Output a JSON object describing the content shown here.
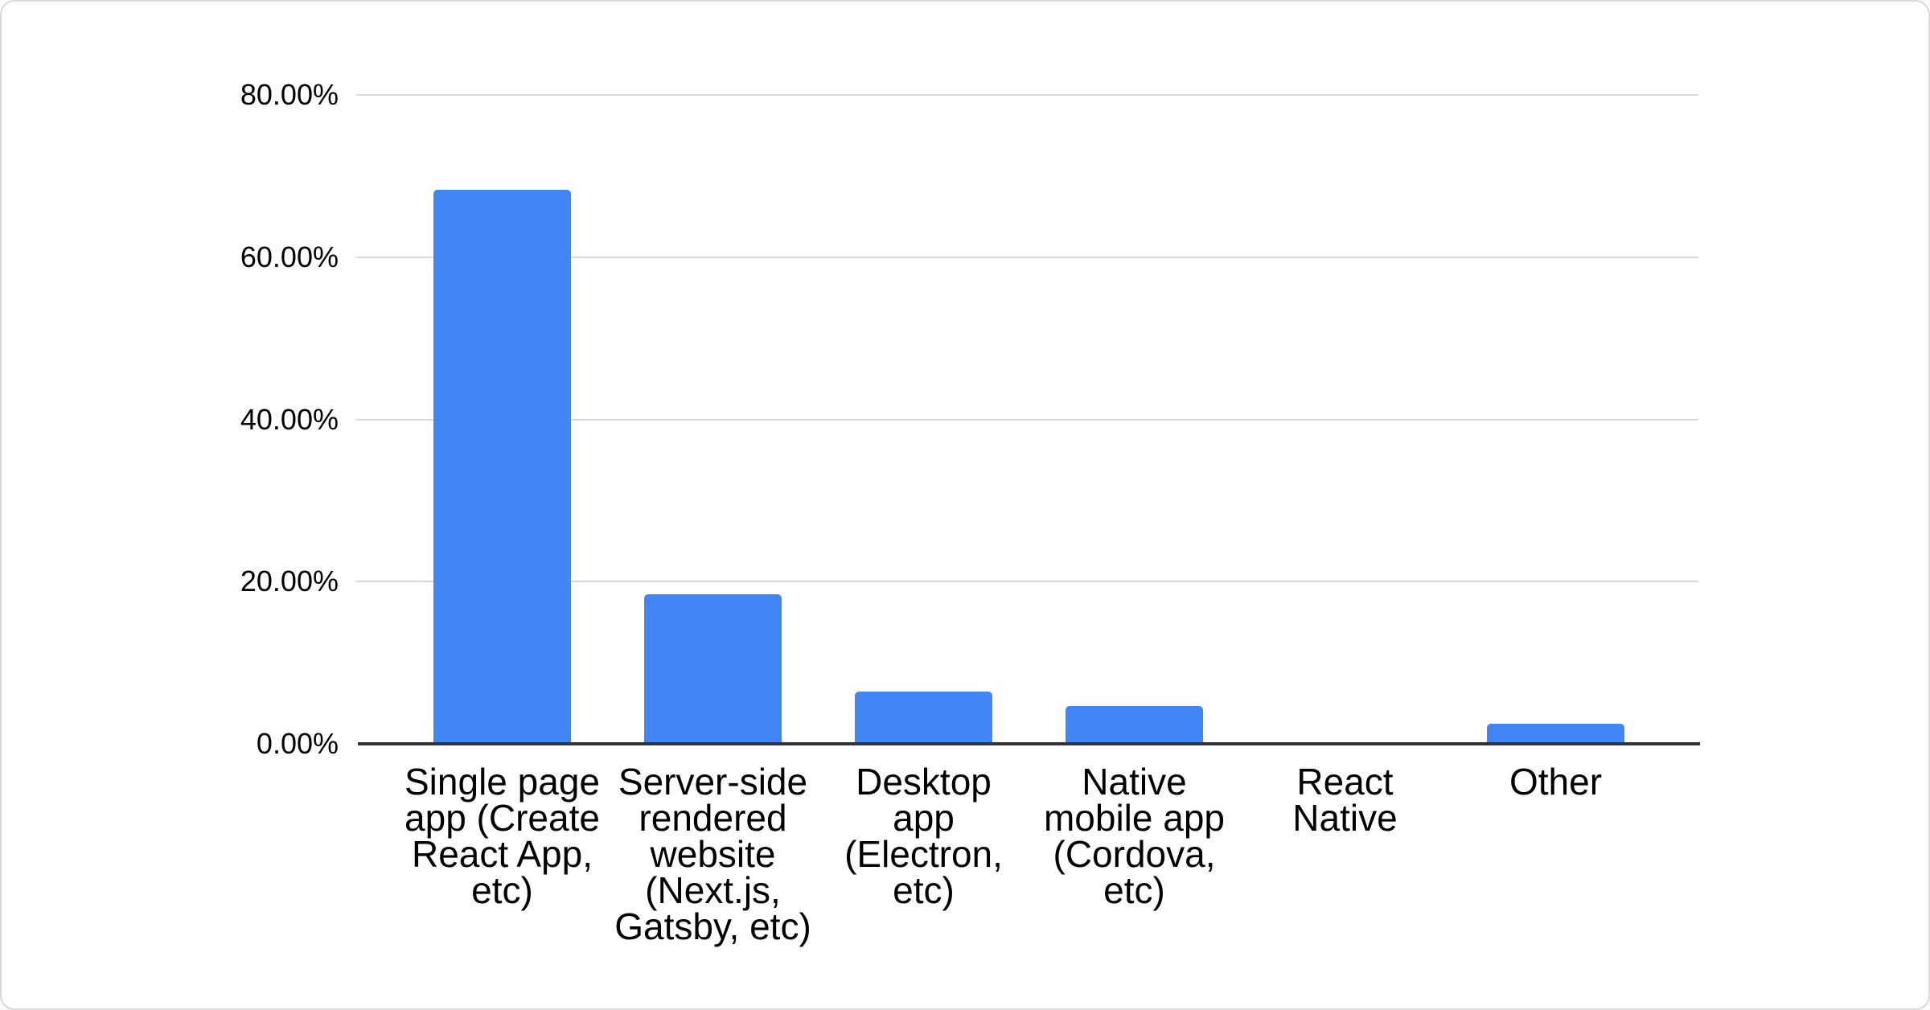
{
  "chart_data": {
    "type": "bar",
    "title": "",
    "xlabel": "",
    "ylabel": "",
    "categories": [
      "Single page app (Create React App, etc)",
      "Server-side rendered website (Next.js, Gatsby, etc)",
      "Desktop app (Electron, etc)",
      "Native mobile app (Cordova, etc)",
      "React Native",
      "Other"
    ],
    "category_display_lines": [
      [
        "Single page",
        "app (Create",
        "React App,",
        "etc)"
      ],
      [
        "Server-side",
        "rendered",
        "website",
        "(Next.js,",
        "Gatsby, etc)"
      ],
      [
        "Desktop",
        "app",
        "(Electron,",
        "etc)"
      ],
      [
        "Native",
        "mobile app",
        "(Cordova,",
        "etc)"
      ],
      [
        "React",
        "Native"
      ],
      [
        "Other"
      ]
    ],
    "values": [
      68.3,
      18.4,
      6.4,
      4.7,
      0,
      2.5
    ],
    "value_unit": "percent",
    "ylim": [
      0,
      80
    ],
    "yticks": [
      {
        "value": 80,
        "label": "80.00%"
      },
      {
        "value": 60,
        "label": "60.00%"
      },
      {
        "value": 40,
        "label": "40.00%"
      },
      {
        "value": 20,
        "label": "20.00%"
      },
      {
        "value": 0,
        "label": "0.00%"
      }
    ],
    "grid": true,
    "legend_position": "none",
    "bar_color": "#4285f4",
    "gridline_color": "#d9d9d9",
    "baseline_color": "#333333",
    "text_color": "#000000"
  }
}
